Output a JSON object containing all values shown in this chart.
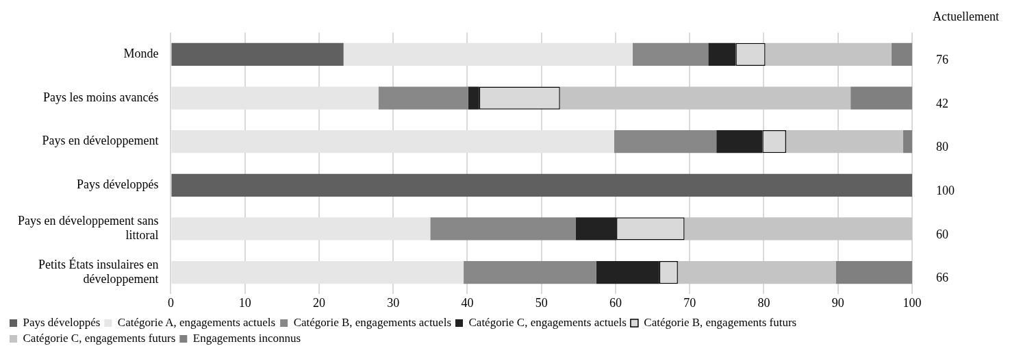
{
  "chart_data": {
    "type": "bar",
    "orientation": "horizontal",
    "stacked": true,
    "categories": [
      "Monde",
      "Pays les moins avancés",
      "Pays en développement",
      "Pays développés",
      "Pays en développement sans littoral",
      "Petits États insulaires en développement"
    ],
    "series": [
      {
        "name": "Pays développés",
        "color": "#606060",
        "values": [
          23.3,
          null,
          null,
          100,
          null,
          null
        ]
      },
      {
        "name": "Catégorie A, engagements actuels",
        "color": "#e6e6e6",
        "values": [
          39.0,
          28.0,
          59.8,
          null,
          35.0,
          39.5
        ]
      },
      {
        "name": "Catégorie B, engagements actuels",
        "color": "#888888",
        "values": [
          10.2,
          12.1,
          13.8,
          null,
          19.6,
          17.9
        ]
      },
      {
        "name": "Catégorie C, engagements actuels",
        "color": "#222222",
        "values": [
          3.7,
          1.5,
          6.2,
          null,
          5.5,
          8.5
        ]
      },
      {
        "name": "Catégorie B, engagements futurs",
        "color": "#d9d9d9",
        "line_style": "dashed",
        "values": [
          4.0,
          10.9,
          3.2,
          null,
          9.2,
          2.5
        ]
      },
      {
        "name": "Catégorie C, engagements futurs",
        "color": "#c4c4c4",
        "values": [
          17.0,
          39.2,
          15.8,
          null,
          30.7,
          21.3
        ]
      },
      {
        "name": "Engagements inconnus",
        "color": "#808080",
        "values": [
          2.8,
          8.3,
          1.2,
          null,
          null,
          10.3
        ]
      }
    ],
    "xlim": [
      0,
      100
    ],
    "xticks": [
      0,
      10,
      20,
      30,
      40,
      50,
      60,
      70,
      80,
      90,
      100
    ],
    "grid": "x",
    "legend": "bottom",
    "annotations": [
      "Actuellement",
      "76",
      "42",
      "80",
      "100",
      "60",
      "66"
    ]
  }
}
